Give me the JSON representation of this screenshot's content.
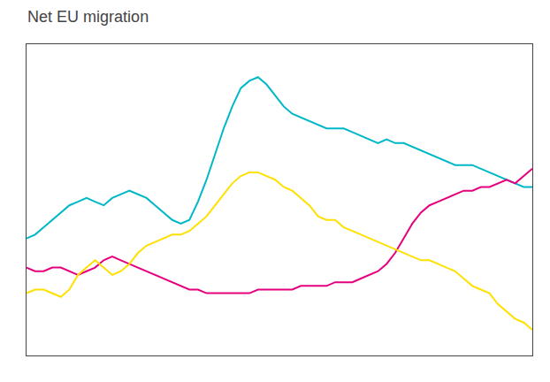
{
  "chart_data": {
    "type": "line",
    "title": "Net EU migration",
    "series": [
      {
        "color": "#00b8c8",
        "values": [
          52,
          53,
          55,
          57,
          59,
          61,
          62,
          63,
          62,
          61,
          63,
          64,
          65,
          64,
          63,
          61,
          59,
          57,
          56,
          57,
          62,
          68,
          75,
          82,
          88,
          93,
          95,
          96,
          94,
          91,
          88,
          86,
          85,
          84,
          83,
          82,
          82,
          82,
          81,
          80,
          79,
          78,
          79,
          78,
          78,
          77,
          76,
          75,
          74,
          73,
          72,
          72,
          72,
          71,
          70,
          69,
          68,
          67,
          66,
          66
        ]
      },
      {
        "color": "#e6007e",
        "values": [
          44,
          43,
          43,
          44,
          44,
          43,
          42,
          43,
          44,
          46,
          47,
          46,
          45,
          44,
          43,
          42,
          41,
          40,
          39,
          38,
          38,
          37,
          37,
          37,
          37,
          37,
          37,
          38,
          38,
          38,
          38,
          38,
          39,
          39,
          39,
          39,
          40,
          40,
          40,
          41,
          42,
          43,
          45,
          48,
          52,
          56,
          59,
          61,
          62,
          63,
          64,
          65,
          65,
          66,
          66,
          67,
          68,
          67,
          69,
          71
        ]
      },
      {
        "color": "#ffe000",
        "values": [
          37,
          38,
          38,
          37,
          36,
          38,
          42,
          44,
          46,
          44,
          42,
          43,
          45,
          48,
          50,
          51,
          52,
          53,
          53,
          54,
          56,
          58,
          61,
          64,
          67,
          69,
          70,
          70,
          69,
          68,
          66,
          65,
          63,
          61,
          58,
          57,
          57,
          55,
          54,
          53,
          52,
          51,
          50,
          49,
          48,
          47,
          46,
          46,
          45,
          44,
          43,
          41,
          39,
          38,
          37,
          34,
          32,
          30,
          29,
          27
        ]
      }
    ],
    "ylim": [
      20,
      105
    ],
    "grid": false,
    "tick_labels": false
  }
}
